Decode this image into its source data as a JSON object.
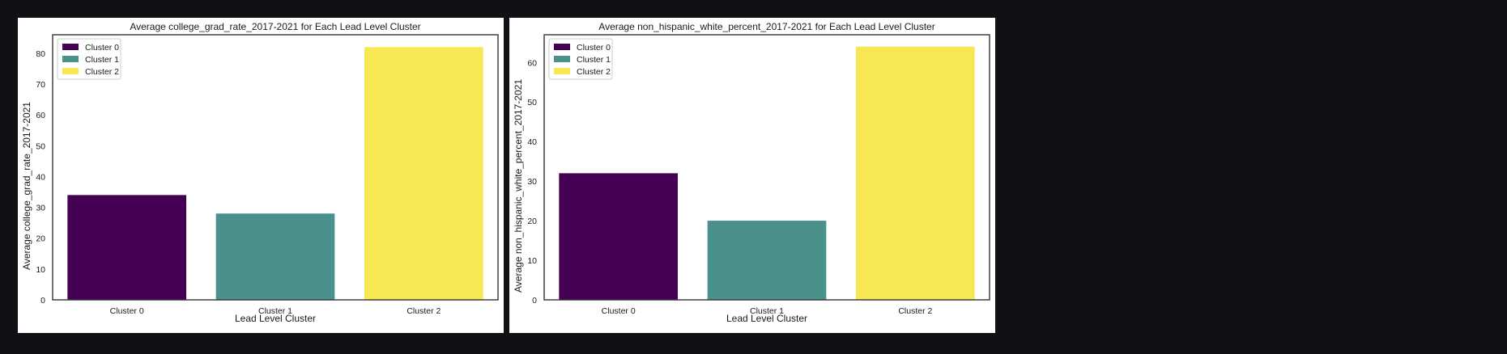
{
  "chart_data": [
    {
      "type": "bar",
      "title": "Average college_grad_rate_2017-2021 for Each Lead Level Cluster",
      "xlabel": "Lead Level Cluster",
      "ylabel": "Average college_grad_rate_2017-2021",
      "categories": [
        "Cluster 0",
        "Cluster 1",
        "Cluster 2"
      ],
      "values": [
        34,
        28,
        82
      ],
      "colors": [
        "#440154",
        "#4a918c",
        "#f7e752"
      ],
      "ylim": [
        0,
        86
      ],
      "yticks": [
        0,
        10,
        20,
        30,
        40,
        50,
        60,
        70,
        80
      ],
      "legend": [
        "Cluster 0",
        "Cluster 1",
        "Cluster 2"
      ],
      "legend_position": "top-left",
      "grid": false
    },
    {
      "type": "bar",
      "title": "Average non_hispanic_white_percent_2017-2021 for Each Lead Level Cluster",
      "xlabel": "Lead Level Cluster",
      "ylabel": "Average non_hispanic_white_percent_2017-2021",
      "categories": [
        "Cluster 0",
        "Cluster 1",
        "Cluster 2"
      ],
      "values": [
        32,
        20,
        64
      ],
      "colors": [
        "#440154",
        "#4a918c",
        "#f7e752"
      ],
      "ylim": [
        0,
        67
      ],
      "yticks": [
        0,
        10,
        20,
        30,
        40,
        50,
        60
      ],
      "legend": [
        "Cluster 0",
        "Cluster 1",
        "Cluster 2"
      ],
      "legend_position": "top-left",
      "grid": false
    }
  ]
}
